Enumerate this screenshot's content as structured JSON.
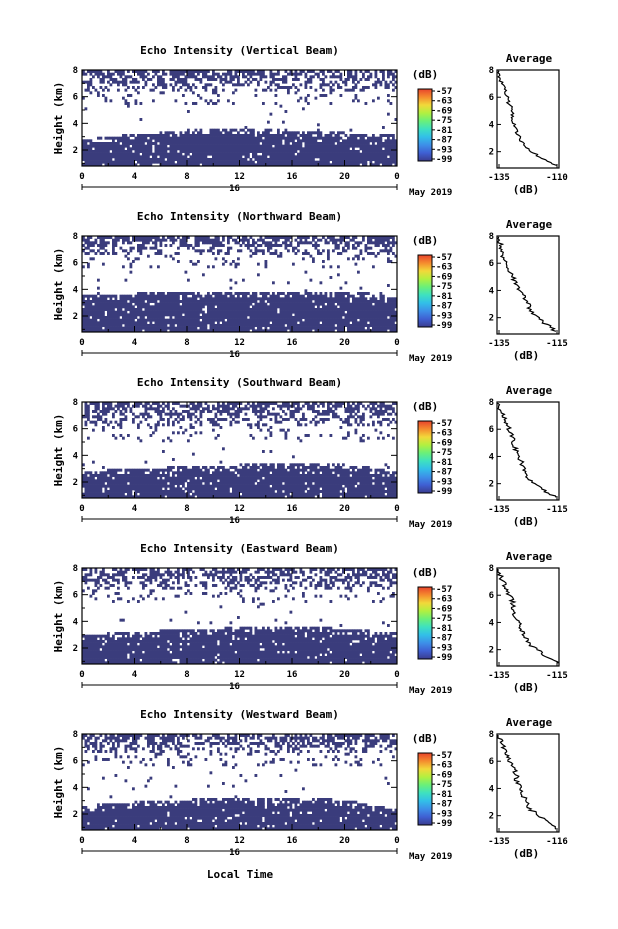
{
  "figure": {
    "colorbar_unit": "(dB)",
    "colorbar_ticks": [
      "-57",
      "-63",
      "-69",
      "-75",
      "-81",
      "-87",
      "-93",
      "-99"
    ],
    "x_ticks": [
      "0",
      "4",
      "8",
      "12",
      "16",
      "20",
      "0"
    ],
    "date_day": "16",
    "date_label": "May 2019",
    "xlabel": "Local Time",
    "ylabel": "Height (km)",
    "y_ticks": [
      "2",
      "4",
      "6",
      "8"
    ],
    "avg_ylabel": "(dB)",
    "avg_y_ticks": [
      "2",
      "4",
      "6",
      "8"
    ],
    "colors": {
      "echo": "#3a3c7c",
      "colormap": [
        "#3a3c8e",
        "#3f5fd2",
        "#3d8fe8",
        "#32bfe8",
        "#3ee1c0",
        "#6af07a",
        "#b2f040",
        "#f2d93a",
        "#f58b2e",
        "#e8432c"
      ]
    }
  },
  "chart_data": [
    {
      "type": "heatmap",
      "title": "Echo Intensity (Vertical Beam)",
      "x_range_hours": [
        0,
        24
      ],
      "y_range_km": [
        0.8,
        8
      ],
      "main_layer_top_km": [
        2.8,
        3.0,
        3.0,
        3.2,
        3.2,
        3.2,
        3.4,
        3.4,
        3.6,
        3.6,
        3.6,
        3.6,
        3.6,
        3.6,
        3.6,
        3.4,
        3.4,
        3.4,
        3.4,
        3.4,
        3.2,
        3.2,
        3.2,
        3.2
      ],
      "upper_band_km": [
        6.4,
        8.0
      ],
      "avg_title": "Average",
      "avg_xlabel_ticks": [
        "-135",
        "-110"
      ],
      "avg_xlim": [
        -135,
        -110
      ],
      "avg_profile": {
        "height_km": [
          8.0,
          7.5,
          7.0,
          6.5,
          6.0,
          5.5,
          5.0,
          4.5,
          4.0,
          3.5,
          3.0,
          2.5,
          2.0,
          1.5,
          1.0
        ],
        "db": [
          -135,
          -134,
          -133,
          -132,
          -131,
          -130,
          -129,
          -129,
          -128,
          -127,
          -126,
          -124,
          -121,
          -117,
          -111
        ]
      }
    },
    {
      "type": "heatmap",
      "title": "Echo Intensity (Northward Beam)",
      "x_range_hours": [
        0,
        24
      ],
      "y_range_km": [
        0.8,
        8
      ],
      "main_layer_top_km": [
        3.6,
        3.6,
        3.6,
        3.6,
        3.8,
        3.8,
        3.8,
        3.8,
        3.8,
        3.8,
        3.8,
        3.8,
        3.8,
        3.8,
        3.8,
        3.8,
        3.8,
        3.8,
        3.8,
        3.8,
        3.8,
        3.8,
        3.6,
        3.4
      ],
      "upper_band_km": [
        6.6,
        8.0
      ],
      "avg_title": "Average",
      "avg_xlabel_ticks": [
        "-135",
        "-115"
      ],
      "avg_xlim": [
        -135,
        -115
      ],
      "avg_profile": {
        "height_km": [
          8.0,
          7.5,
          7.0,
          6.5,
          6.0,
          5.5,
          5.0,
          4.5,
          4.0,
          3.5,
          3.0,
          2.5,
          2.0,
          1.5,
          1.0
        ],
        "db": [
          -135,
          -134,
          -134,
          -133,
          -132,
          -131,
          -130,
          -129,
          -128,
          -126,
          -125,
          -124,
          -122,
          -119,
          -116
        ]
      }
    },
    {
      "type": "heatmap",
      "title": "Echo Intensity (Southward Beam)",
      "x_range_hours": [
        0,
        24
      ],
      "y_range_km": [
        0.8,
        8
      ],
      "main_layer_top_km": [
        2.8,
        2.8,
        3.0,
        3.0,
        3.0,
        3.0,
        3.2,
        3.2,
        3.2,
        3.2,
        3.2,
        3.2,
        3.4,
        3.4,
        3.4,
        3.4,
        3.4,
        3.4,
        3.4,
        3.4,
        3.2,
        3.2,
        3.0,
        2.8
      ],
      "upper_band_km": [
        6.2,
        8.0
      ],
      "avg_title": "Average",
      "avg_xlabel_ticks": [
        "-135",
        "-115"
      ],
      "avg_xlim": [
        -135,
        -115
      ],
      "avg_profile": {
        "height_km": [
          8.0,
          7.5,
          7.0,
          6.5,
          6.0,
          5.5,
          5.0,
          4.5,
          4.0,
          3.5,
          3.0,
          2.5,
          2.0,
          1.5,
          1.0
        ],
        "db": [
          -135,
          -134,
          -133,
          -132,
          -131,
          -130,
          -130,
          -129,
          -128,
          -127,
          -126,
          -125,
          -123,
          -120,
          -116
        ]
      }
    },
    {
      "type": "heatmap",
      "title": "Echo Intensity (Eastward Beam)",
      "x_range_hours": [
        0,
        24
      ],
      "y_range_km": [
        0.8,
        8
      ],
      "main_layer_top_km": [
        3.0,
        3.0,
        3.2,
        3.2,
        3.2,
        3.2,
        3.4,
        3.4,
        3.4,
        3.4,
        3.4,
        3.6,
        3.6,
        3.6,
        3.6,
        3.6,
        3.6,
        3.6,
        3.6,
        3.4,
        3.4,
        3.4,
        3.2,
        3.2
      ],
      "upper_band_km": [
        6.4,
        8.0
      ],
      "avg_title": "Average",
      "avg_xlabel_ticks": [
        "-135",
        "-115"
      ],
      "avg_xlim": [
        -135,
        -115
      ],
      "avg_profile": {
        "height_km": [
          8.0,
          7.5,
          7.0,
          6.5,
          6.0,
          5.5,
          5.0,
          4.5,
          4.0,
          3.5,
          3.0,
          2.5,
          2.0,
          1.5,
          1.0
        ],
        "db": [
          -135,
          -134,
          -133,
          -132,
          -131,
          -130,
          -130,
          -129,
          -128,
          -127,
          -126,
          -125,
          -122,
          -119,
          -115
        ]
      }
    },
    {
      "type": "heatmap",
      "title": "Echo Intensity (Westward Beam)",
      "x_range_hours": [
        0,
        24
      ],
      "y_range_km": [
        0.8,
        8
      ],
      "main_layer_top_km": [
        2.6,
        2.8,
        2.8,
        2.8,
        3.0,
        3.0,
        3.0,
        3.0,
        3.0,
        3.2,
        3.2,
        3.2,
        3.2,
        3.2,
        3.2,
        3.2,
        3.2,
        3.2,
        3.2,
        3.0,
        3.0,
        2.8,
        2.6,
        2.4
      ],
      "upper_band_km": [
        6.6,
        8.0
      ],
      "avg_title": "Average",
      "avg_xlabel_ticks": [
        "-135",
        "-116"
      ],
      "avg_xlim": [
        -135,
        -116
      ],
      "avg_profile": {
        "height_km": [
          8.0,
          7.5,
          7.0,
          6.5,
          6.0,
          5.5,
          5.0,
          4.5,
          4.0,
          3.5,
          3.0,
          2.5,
          2.0,
          1.5,
          1.0
        ],
        "db": [
          -135,
          -134,
          -133,
          -132,
          -131,
          -130,
          -129,
          -129,
          -128,
          -127,
          -126,
          -125,
          -122,
          -119,
          -117
        ]
      }
    }
  ]
}
